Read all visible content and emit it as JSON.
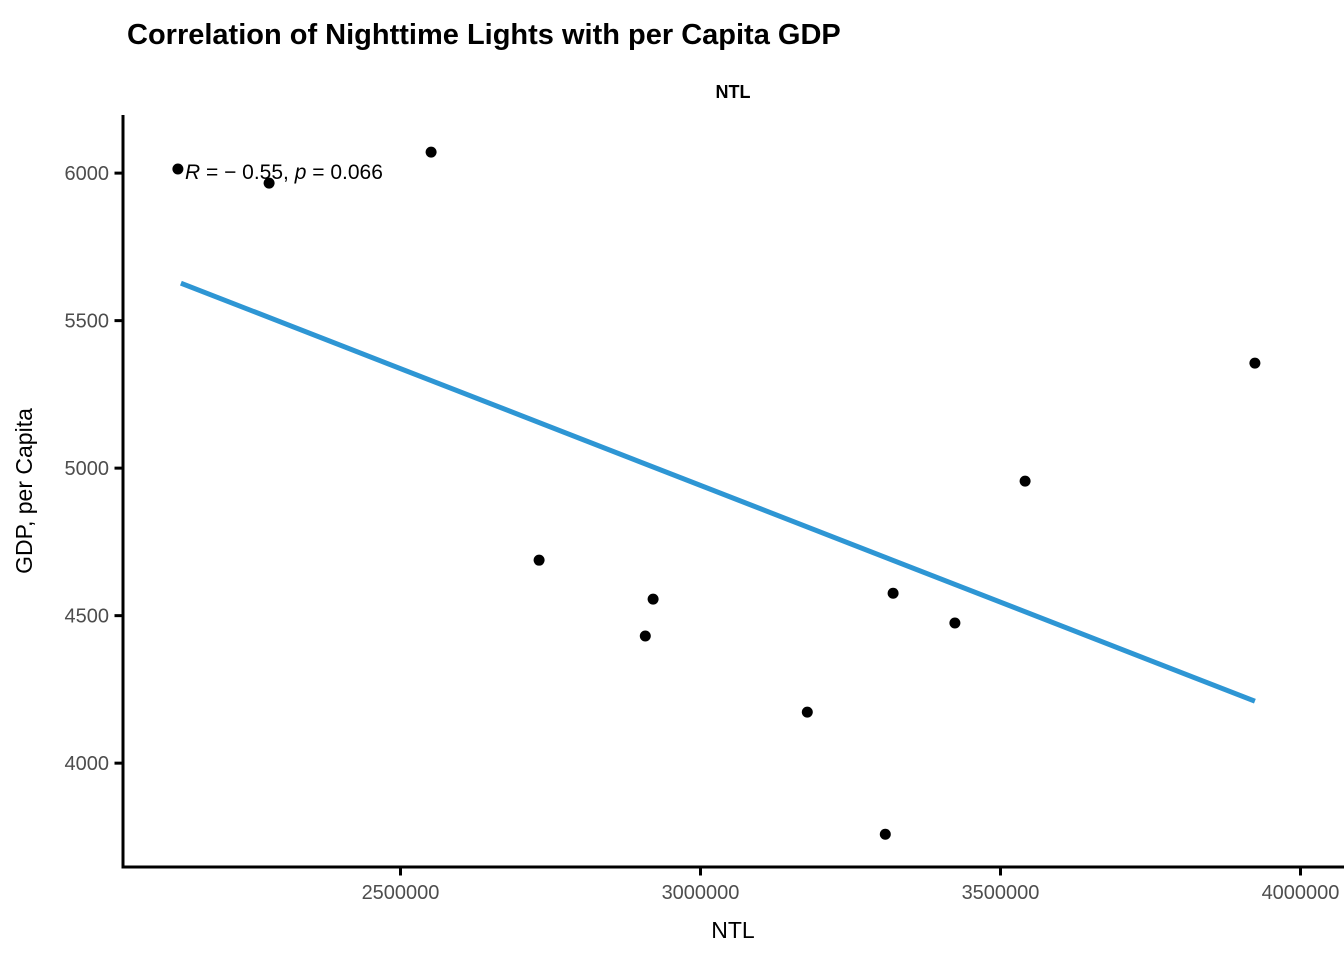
{
  "page": {
    "background": "#ffffff",
    "axis_color": "#000000",
    "tick_label_color": "#4d4d4d"
  },
  "chart_data": {
    "type": "scatter",
    "title": "Correlation of Nighttime Lights with per Capita GDP",
    "subtitle": "NTL",
    "xlabel": "NTL",
    "ylabel": "GDP, per Capita",
    "xlim": [
      2037500,
      4072500
    ],
    "ylim": [
      3648,
      6197
    ],
    "x_ticks": [
      {
        "value": 2500000,
        "label": "2500000"
      },
      {
        "value": 3000000,
        "label": "3000000"
      },
      {
        "value": 3500000,
        "label": "3500000"
      },
      {
        "value": 4000000,
        "label": "4000000"
      }
    ],
    "y_ticks": [
      {
        "value": 4000,
        "label": "4000"
      },
      {
        "value": 4500,
        "label": "4500"
      },
      {
        "value": 5000,
        "label": "5000"
      },
      {
        "value": 5500,
        "label": "5500"
      },
      {
        "value": 6000,
        "label": "6000"
      }
    ],
    "grid": false,
    "legend": "none",
    "point_color": "#000000",
    "point_radius": 5.5,
    "points": [
      {
        "x": 2129000,
        "y": 6014
      },
      {
        "x": 2281000,
        "y": 5966
      },
      {
        "x": 2551000,
        "y": 6071
      },
      {
        "x": 2731000,
        "y": 4688
      },
      {
        "x": 2908000,
        "y": 4431
      },
      {
        "x": 2921000,
        "y": 4556
      },
      {
        "x": 3178000,
        "y": 4173
      },
      {
        "x": 3308000,
        "y": 3759
      },
      {
        "x": 3321000,
        "y": 4576
      },
      {
        "x": 3424000,
        "y": 4475
      },
      {
        "x": 3541000,
        "y": 4956
      },
      {
        "x": 3924000,
        "y": 5356
      }
    ],
    "trend_line": {
      "color": "#2E96D4",
      "width": 5,
      "x1": 2134000,
      "y1": 5627,
      "x2": 3924000,
      "y2": 4210
    },
    "annotation": {
      "x": 2140800,
      "y": 6003,
      "r_label": "R",
      "r_text": " = − 0.55, ",
      "p_label": "p",
      "p_text": " = 0.066"
    }
  }
}
